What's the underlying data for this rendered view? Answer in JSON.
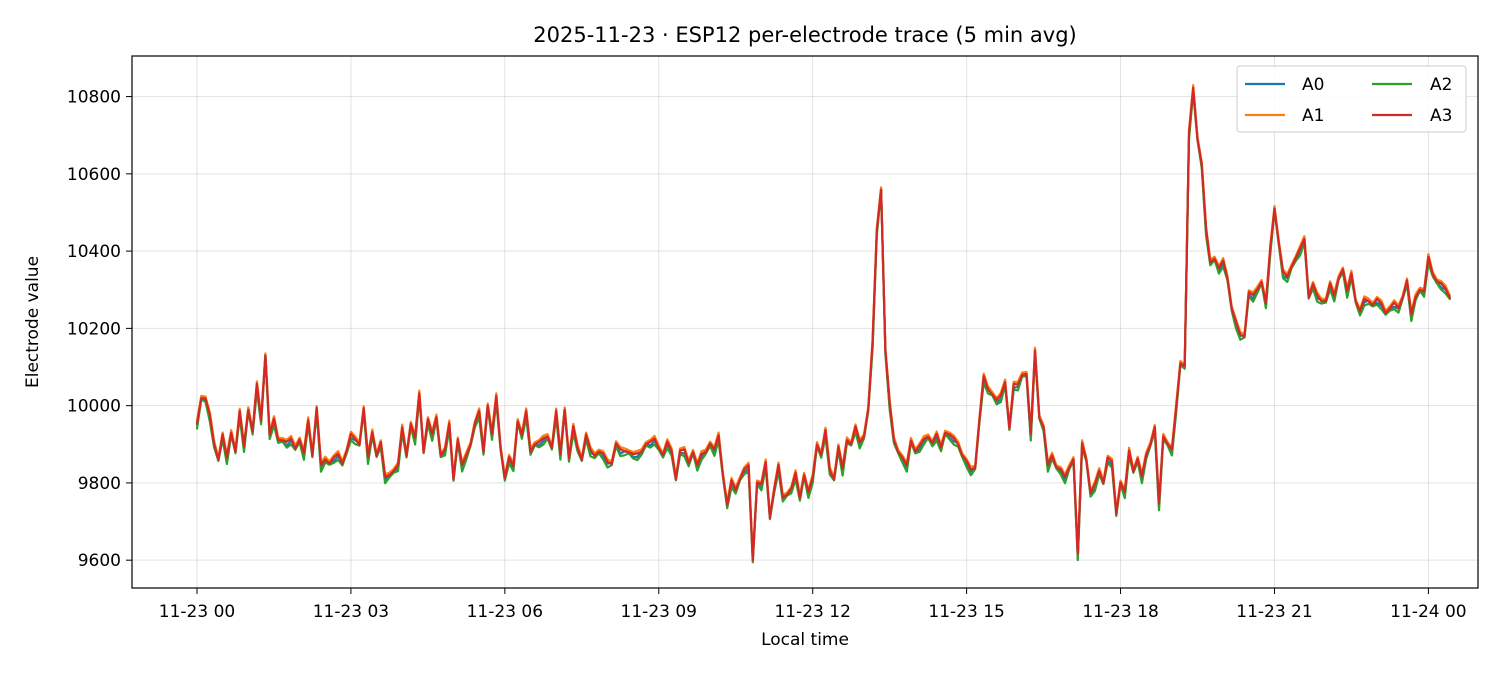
{
  "chart_data": {
    "type": "line",
    "title": "2025-11-23 · ESP12 per-electrode trace (5 min avg)",
    "xlabel": "Local time",
    "ylabel": "Electrode value",
    "x_start": "2025-11-23 00:00",
    "x_end": "2025-11-23 23:55",
    "x_interval_minutes": 5,
    "xlim": [
      "2025-11-22 22:44",
      "2025-11-24 00:58"
    ],
    "ylim": [
      9528,
      10905
    ],
    "x_ticks": [
      {
        "time": "2025-11-23 00:00",
        "label": "11-23 00"
      },
      {
        "time": "2025-11-23 03:00",
        "label": "11-23 03"
      },
      {
        "time": "2025-11-23 06:00",
        "label": "11-23 06"
      },
      {
        "time": "2025-11-23 09:00",
        "label": "11-23 09"
      },
      {
        "time": "2025-11-23 12:00",
        "label": "11-23 12"
      },
      {
        "time": "2025-11-23 15:00",
        "label": "11-23 15"
      },
      {
        "time": "2025-11-23 18:00",
        "label": "11-23 18"
      },
      {
        "time": "2025-11-23 21:00",
        "label": "11-23 21"
      },
      {
        "time": "2025-11-24 00:00",
        "label": "11-24 00"
      }
    ],
    "y_ticks": [
      9600,
      9800,
      10000,
      10200,
      10400,
      10600,
      10800
    ],
    "y_tick_labels": [
      "9600",
      "9800",
      "10000",
      "10200",
      "10400",
      "10600",
      "10800"
    ],
    "grid": true,
    "legend": {
      "placement": "top-right",
      "columns": 2
    },
    "base_series": [
      9950,
      10020,
      10015,
      9970,
      9900,
      9860,
      9920,
      9860,
      9930,
      9880,
      9980,
      9890,
      9990,
      9930,
      10050,
      9960,
      10130,
      9920,
      9960,
      9910,
      9910,
      9900,
      9910,
      9890,
      9910,
      9870,
      9960,
      9870,
      9990,
      9840,
      9860,
      9850,
      9860,
      9870,
      9850,
      9880,
      9920,
      9910,
      9900,
      9990,
      9860,
      9930,
      9870,
      9900,
      9810,
      9820,
      9830,
      9840,
      9940,
      9870,
      9950,
      9910,
      10030,
      9880,
      9960,
      9920,
      9970,
      9870,
      9880,
      9950,
      9810,
      9910,
      9840,
      9870,
      9900,
      9950,
      9980,
      9880,
      10000,
      9920,
      10020,
      9890,
      9810,
      9860,
      9840,
      9960,
      9920,
      9980,
      9880,
      9900,
      9900,
      9910,
      9920,
      9890,
      9980,
      9870,
      9990,
      9860,
      9940,
      9890,
      9860,
      9920,
      9880,
      9870,
      9880,
      9870,
      9850,
      9850,
      9900,
      9880,
      9880,
      9880,
      9870,
      9870,
      9880,
      9900,
      9900,
      9910,
      9890,
      9870,
      9900,
      9880,
      9810,
      9880,
      9880,
      9850,
      9880,
      9840,
      9870,
      9880,
      9900,
      9880,
      9920,
      9820,
      9740,
      9800,
      9780,
      9810,
      9830,
      9840,
      9600,
      9800,
      9790,
      9850,
      9710,
      9780,
      9840,
      9760,
      9770,
      9780,
      9820,
      9760,
      9820,
      9770,
      9810,
      9900,
      9870,
      9930,
      9830,
      9810,
      9890,
      9830,
      9910,
      9900,
      9940,
      9900,
      9920,
      9990,
      10160,
      10450,
      10560,
      10140,
      10000,
      9910,
      9880,
      9860,
      9840,
      9910,
      9880,
      9890,
      9910,
      9920,
      9900,
      9920,
      9890,
      9930,
      9920,
      9910,
      9900,
      9870,
      9850,
      9830,
      9840,
      9960,
      10070,
      10040,
      10030,
      10010,
      10020,
      10060,
      9940,
      10050,
      10050,
      10080,
      10080,
      9920,
      10140,
      9970,
      9940,
      9840,
      9870,
      9840,
      9830,
      9810,
      9840,
      9860,
      9610,
      9900,
      9860,
      9770,
      9790,
      9830,
      9800,
      9860,
      9850,
      9720,
      9800,
      9770,
      9880,
      9830,
      9860,
      9810,
      9870,
      9900,
      9940,
      9740,
      9920,
      9900,
      9880,
      9990,
      10110,
      10100,
      10700,
      10820,
      10690,
      10620,
      10450,
      10370,
      10380,
      10350,
      10370,
      10330,
      10250,
      10210,
      10180,
      10180,
      10290,
      10280,
      10300,
      10320,
      10260,
      10400,
      10510,
      10420,
      10340,
      10330,
      10360,
      10380,
      10400,
      10430,
      10280,
      10310,
      10280,
      10270,
      10270,
      10310,
      10280,
      10330,
      10350,
      10290,
      10340,
      10270,
      10240,
      10270,
      10270,
      10260,
      10270,
      10260,
      10240,
      10250,
      10260,
      10250,
      10280,
      10320,
      10230,
      10280,
      10300,
      10290,
      10380,
      10340,
      10320,
      10310,
      10300,
      10280
    ],
    "series": [
      {
        "name": "A0",
        "color": "#1f77b4",
        "offset": 0
      },
      {
        "name": "A1",
        "color": "#ff7f0e",
        "offset": 9
      },
      {
        "name": "A2",
        "color": "#2ca02c",
        "offset": -7
      },
      {
        "name": "A3",
        "color": "#d62728",
        "offset": 3
      }
    ]
  }
}
